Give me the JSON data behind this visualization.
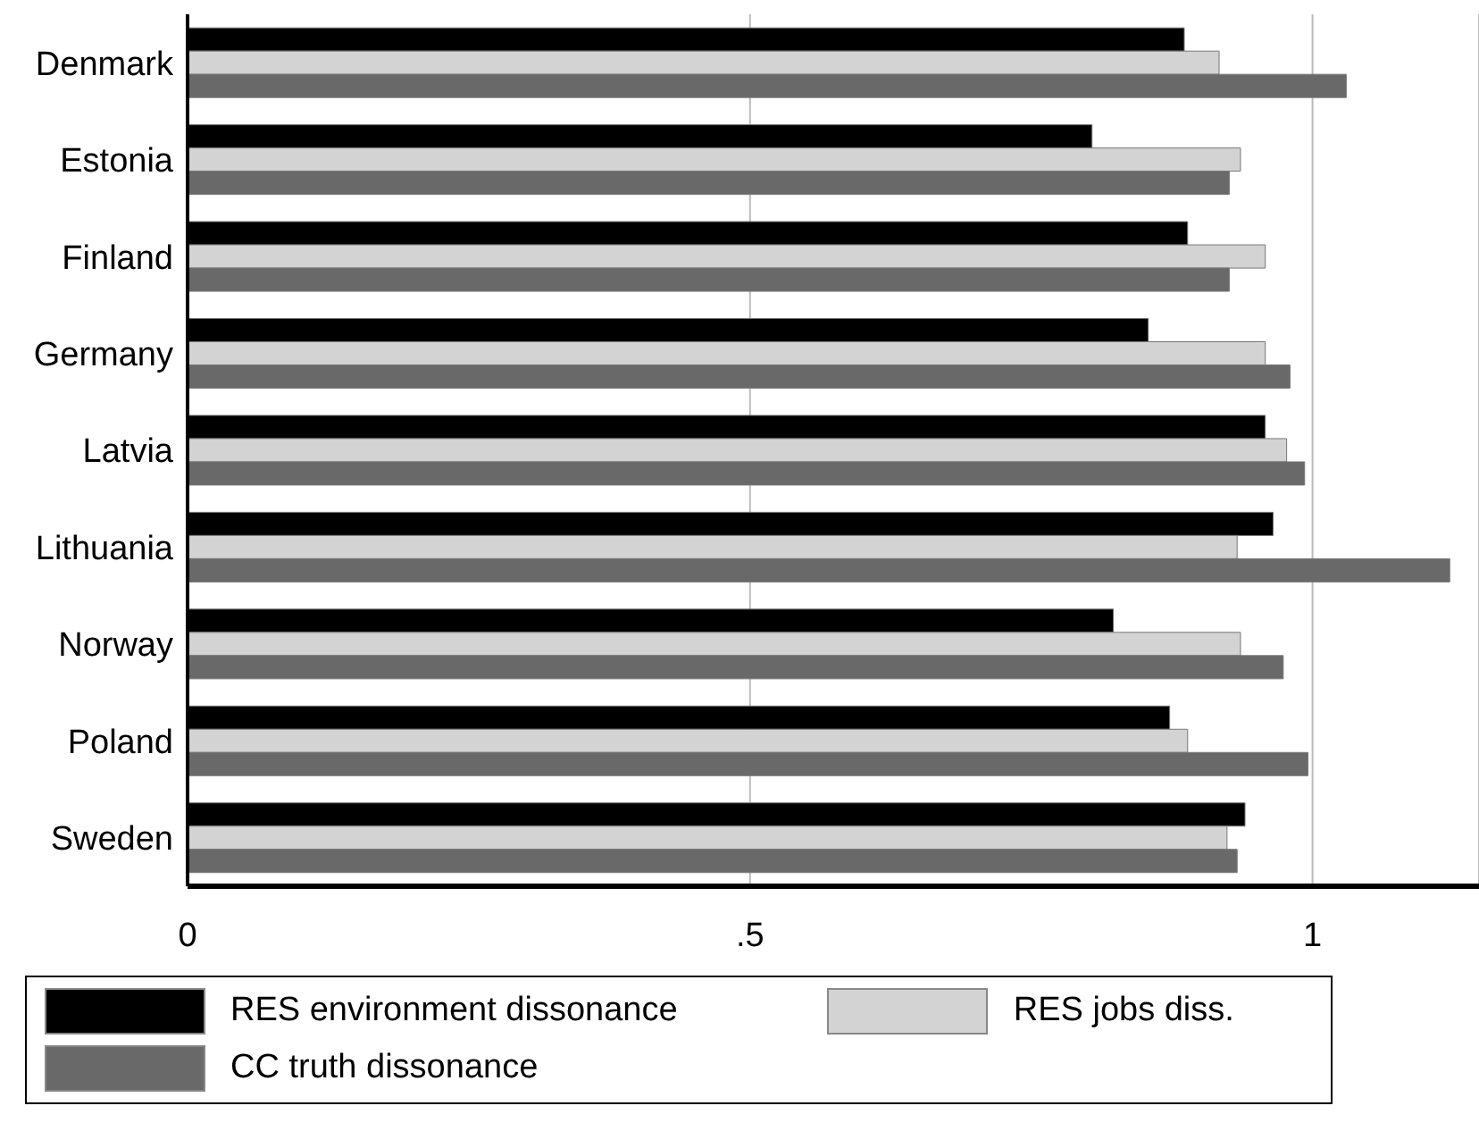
{
  "chart_data": {
    "type": "bar",
    "orientation": "horizontal",
    "categories": [
      "Denmark",
      "Estonia",
      "Finland",
      "Germany",
      "Latvia",
      "Lithuania",
      "Norway",
      "Poland",
      "Sweden"
    ],
    "series": [
      {
        "name": "RES environment dissonance",
        "color": "#000000",
        "values": [
          0.886,
          0.804,
          0.889,
          0.854,
          0.958,
          0.965,
          0.823,
          0.873,
          0.94
        ]
      },
      {
        "name": "RES jobs diss.",
        "color": "#d3d3d3",
        "values": [
          0.917,
          0.936,
          0.958,
          0.958,
          0.977,
          0.933,
          0.936,
          0.889,
          0.924
        ]
      },
      {
        "name": "CC truth dissonance",
        "color": "#696969",
        "values": [
          1.03,
          0.926,
          0.926,
          0.98,
          0.993,
          1.122,
          0.974,
          0.996,
          0.933
        ]
      }
    ],
    "xlim": [
      0,
      1.148
    ],
    "xticks": [
      0,
      {
        "value": 0.5,
        "label": ".5"
      },
      1
    ],
    "grid": "x",
    "legend": "bottom"
  }
}
